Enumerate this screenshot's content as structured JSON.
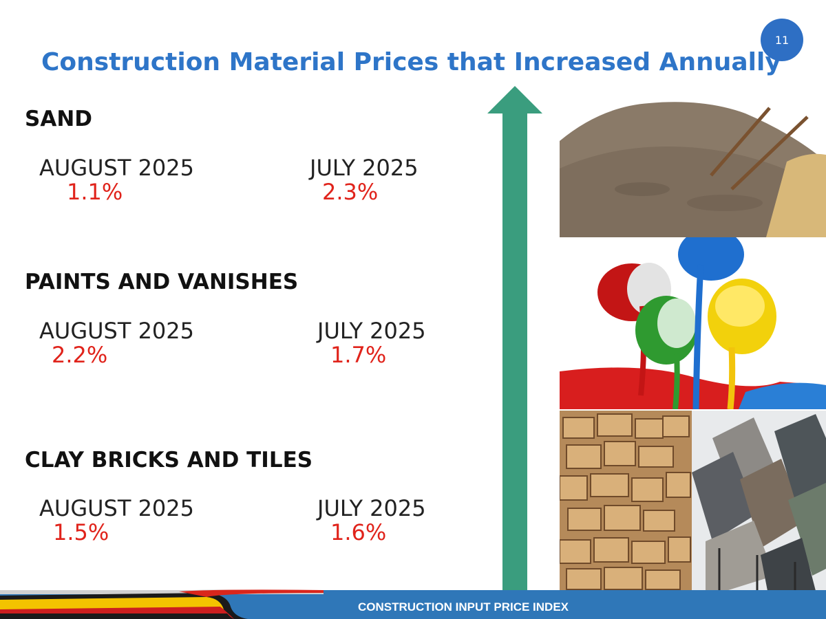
{
  "title": "Construction Material Prices  that Increased Annually",
  "page_number": "11",
  "sections": [
    {
      "name": "SAND",
      "periods": [
        {
          "label": "AUGUST 2025",
          "value": "1.1%"
        },
        {
          "label": "JULY 2025",
          "value": "2.3%"
        }
      ],
      "image_icon": "sand-pile-icon"
    },
    {
      "name": "PAINTS AND VANISHES",
      "periods": [
        {
          "label": "AUGUST 2025",
          "value": "2.2%"
        },
        {
          "label": "JULY 2025",
          "value": "1.7%"
        }
      ],
      "image_icon": "paint-cans-icon"
    },
    {
      "name": "CLAY BRICKS AND TILES",
      "periods": [
        {
          "label": "AUGUST 2025",
          "value": "1.5%"
        },
        {
          "label": "JULY 2025",
          "value": "1.6%"
        }
      ],
      "image_icon": "bricks-tiles-icon"
    }
  ],
  "footer": {
    "label": "CONSTRUCTION INPUT PRICE INDEX"
  },
  "colors": {
    "title": "#2e75c8",
    "badge": "#2e6fc4",
    "percent": "#e0231b",
    "arrow": "#3a9d7e",
    "footer": "#2f77b8"
  }
}
